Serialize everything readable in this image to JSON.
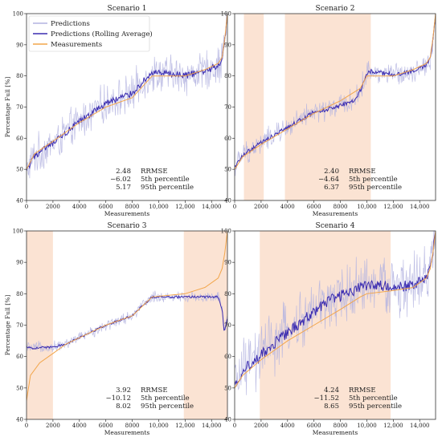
{
  "figure": {
    "ylabel": "Percentage Full [%]",
    "legend": {
      "placement": "upper-left of panel 1",
      "entries": [
        {
          "label": "Predictions",
          "color": "#b4b4e0"
        },
        {
          "label": "Predictions (Rolling Average)",
          "color": "#3a2bb0"
        },
        {
          "label": "Measurements",
          "color": "#f2a54a"
        }
      ]
    },
    "colors": {
      "predictions": "#b4b4e0",
      "rolling": "#3a2bb0",
      "measurements": "#f2a54a",
      "shade": "#fbe3d3"
    }
  },
  "chart_data": [
    {
      "type": "line",
      "title": "Scenario 1",
      "xlabel": "Measurements",
      "ylabel": "Percentage Full [%]",
      "xlim": [
        0,
        15200
      ],
      "ylim": [
        40,
        100
      ],
      "xticks": [
        0,
        2000,
        4000,
        6000,
        8000,
        10000,
        12000,
        14000
      ],
      "xtick_labels": [
        "0",
        "2000",
        "4000",
        "6000",
        "8000",
        "10,000",
        "12,000",
        "14,000"
      ],
      "yticks": [
        40,
        50,
        60,
        70,
        80,
        90,
        100
      ],
      "grid": false,
      "shaded_ranges": [],
      "noise_level": 5,
      "rolling_offsets": [
        [
          2000,
          -0.8
        ],
        [
          6000,
          1.2
        ],
        [
          8400,
          1.5
        ],
        [
          13500,
          -0.5
        ]
      ],
      "measurements": {
        "x": [
          0,
          600,
          2000,
          4000,
          6000,
          8000,
          9500,
          12000,
          13500,
          14500,
          14800,
          15000,
          15200
        ],
        "y": [
          50,
          55,
          59,
          65,
          70,
          73,
          80,
          80,
          82,
          84,
          86,
          92,
          100
        ]
      },
      "stats": [
        {
          "value": "2.48",
          "label": "RRMSE"
        },
        {
          "value": "−6.02",
          "label": "5th percentile"
        },
        {
          "value": "5.17",
          "label": "95th percentile"
        }
      ]
    },
    {
      "type": "line",
      "title": "Scenario 2",
      "xlabel": "Measurements",
      "ylabel": "",
      "xlim": [
        0,
        15200
      ],
      "ylim": [
        40,
        100
      ],
      "xticks": [
        0,
        2000,
        4000,
        6000,
        8000,
        10000,
        12000,
        14000
      ],
      "xtick_labels": [
        "0",
        "2000",
        "4000",
        "6000",
        "8000",
        "10,000",
        "12,000",
        "14,000"
      ],
      "yticks": [
        40,
        50,
        60,
        70,
        80,
        90,
        100
      ],
      "grid": false,
      "shaded_ranges": [
        [
          700,
          2200
        ],
        [
          3800,
          10300
        ]
      ],
      "noise_level": 3,
      "rolling_offsets": [
        [
          2000,
          0.5
        ],
        [
          6000,
          0.3
        ],
        [
          9000,
          -2.5
        ],
        [
          10200,
          1.5
        ],
        [
          13500,
          -0.5
        ]
      ],
      "measurements": {
        "x": [
          0,
          600,
          2000,
          4000,
          6000,
          8000,
          9500,
          10000,
          12000,
          13500,
          14500,
          14800,
          15000,
          15200
        ],
        "y": [
          50,
          54,
          58,
          63,
          68,
          72,
          76,
          80,
          80,
          82,
          84,
          86,
          92,
          100
        ]
      },
      "stats": [
        {
          "value": "2.40",
          "label": "RRMSE"
        },
        {
          "value": "−4.64",
          "label": "5th percentile"
        },
        {
          "value": "6.37",
          "label": "95th percentile"
        }
      ]
    },
    {
      "type": "line",
      "title": "Scenario 3",
      "xlabel": "Measurements",
      "ylabel": "Percentage Full [%]",
      "xlim": [
        0,
        15200
      ],
      "ylim": [
        40,
        100
      ],
      "xticks": [
        0,
        2000,
        4000,
        6000,
        8000,
        10000,
        12000,
        14000
      ],
      "xtick_labels": [
        "0",
        "2000",
        "4000",
        "6000",
        "8000",
        "10,000",
        "12,000",
        "14,000"
      ],
      "yticks": [
        40,
        50,
        60,
        70,
        80,
        90,
        100
      ],
      "grid": false,
      "shaded_ranges": [
        [
          0,
          2000
        ],
        [
          11900,
          15200
        ]
      ],
      "noise_level": 1.5,
      "rolling_offsets": [
        [
          0,
          0
        ],
        [
          2000,
          0
        ]
      ],
      "rolling_override": {
        "x": [
          0,
          500,
          1000,
          2000,
          3000,
          4000,
          6000,
          8000,
          9500,
          12000,
          13500,
          14500,
          14800,
          14950,
          15200
        ],
        "y": [
          63,
          62.5,
          63,
          63,
          64,
          66,
          70,
          73,
          79,
          79,
          79,
          79,
          75,
          68,
          72
        ]
      },
      "measurements": {
        "x": [
          0,
          300,
          1000,
          2000,
          3000,
          4000,
          6000,
          8000,
          9500,
          12000,
          13500,
          14500,
          14800,
          15000,
          15200
        ],
        "y": [
          46,
          54,
          58,
          61,
          64,
          66,
          70,
          73,
          79,
          80,
          82,
          85,
          88,
          93,
          100
        ]
      },
      "stats": [
        {
          "value": "3.92",
          "label": "RRMSE"
        },
        {
          "value": "−10.12",
          "label": "5th percentile"
        },
        {
          "value": "8.02",
          "label": "95th percentile"
        }
      ]
    },
    {
      "type": "line",
      "title": "Scenario 4",
      "xlabel": "Measurements",
      "ylabel": "",
      "xlim": [
        0,
        15200
      ],
      "ylim": [
        40,
        100
      ],
      "xticks": [
        0,
        2000,
        4000,
        6000,
        8000,
        10000,
        12000,
        14000
      ],
      "xtick_labels": [
        "0",
        "2000",
        "4000",
        "6000",
        "8000",
        "10,000",
        "12,000",
        "14,000"
      ],
      "yticks": [
        40,
        50,
        60,
        70,
        80,
        90,
        100
      ],
      "grid": false,
      "shaded_ranges": [
        [
          1900,
          11800
        ]
      ],
      "noise_level": 8,
      "rolling_offsets": [
        [
          2000,
          1.5
        ],
        [
          4000,
          2.5
        ],
        [
          7000,
          5
        ],
        [
          9500,
          3
        ],
        [
          11500,
          1.5
        ],
        [
          13500,
          0.5
        ]
      ],
      "measurements": {
        "x": [
          0,
          600,
          2000,
          4000,
          6000,
          8000,
          9500,
          10000,
          12000,
          13500,
          14500,
          14800,
          15000,
          15200
        ],
        "y": [
          50,
          54,
          59,
          65,
          70,
          75,
          79,
          80,
          81,
          82,
          85,
          88,
          93,
          100
        ]
      },
      "stats": [
        {
          "value": "4.24",
          "label": "RRMSE"
        },
        {
          "value": "−11.52",
          "label": "5th percentile"
        },
        {
          "value": "8.65",
          "label": "95th percentile"
        }
      ]
    }
  ]
}
